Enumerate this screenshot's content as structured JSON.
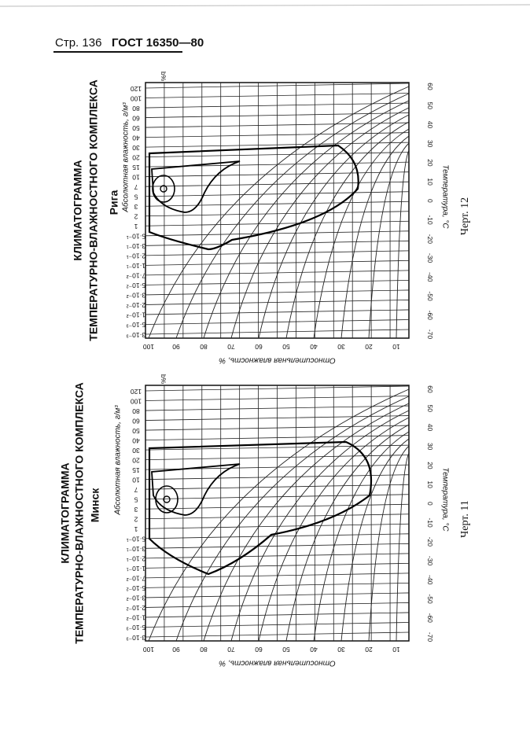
{
  "header": {
    "page": "Стр. 136",
    "standard": "ГОСТ 16350—80"
  },
  "charts": [
    {
      "title": "КЛИМАТОГРАММА",
      "subtitle": "ТЕМПЕРАТУРНО-ВЛАЖНОСТНОГО КОМПЛЕКСА",
      "city": "Рига",
      "abs_label": "Абсолютная влажность, г/м³",
      "abs_ticks": [
        "120",
        "100",
        "80",
        "60",
        "50",
        "40",
        "30",
        "20",
        "15",
        "10",
        "7",
        "5",
        "3",
        "2",
        "1",
        "5·10⁻¹",
        "3·10⁻¹",
        "2·10⁻¹",
        "1·10⁻¹",
        "7·10⁻²",
        "5·10⁻²",
        "3·10⁻²",
        "2·10⁻²",
        "1·10⁻²",
        "5·10⁻³",
        "3·10⁻³"
      ],
      "rel_label": "Относительная влажность, %",
      "rel_ticks": [
        "100",
        "90",
        "80",
        "70",
        "60",
        "50",
        "40",
        "30",
        "20",
        "10"
      ],
      "temp_label": "Температура, °C",
      "temp_ticks": [
        "60",
        "50",
        "40",
        "30",
        "20",
        "10",
        "0",
        "-10",
        "-20",
        "-30",
        "-40",
        "-50",
        "-60",
        "-70"
      ],
      "corner": "b%",
      "caption": "Черт. 12"
    },
    {
      "title": "КЛИМАТОГРАММА",
      "subtitle": "ТЕМПЕРАТУРНО-ВЛАЖНОСТНОГО КОМПЛЕКСА",
      "city": "Минск",
      "abs_label": "Абсолютная влажность, г/м³",
      "abs_ticks": [
        "120",
        "100",
        "80",
        "60",
        "50",
        "40",
        "30",
        "20",
        "15",
        "10",
        "7",
        "5",
        "3",
        "2",
        "1",
        "5·10⁻¹",
        "3·10⁻¹",
        "2·10⁻¹",
        "1·10⁻¹",
        "7·10⁻²",
        "5·10⁻²",
        "3·10⁻²",
        "2·10⁻²",
        "1·10⁻²",
        "5·10⁻³",
        "3·10⁻³"
      ],
      "rel_label": "Относительная влажность, %",
      "rel_ticks": [
        "100",
        "90",
        "80",
        "70",
        "60",
        "50",
        "40",
        "30",
        "20",
        "10"
      ],
      "temp_label": "Температура, °C",
      "temp_ticks": [
        "60",
        "50",
        "40",
        "30",
        "20",
        "10",
        "0",
        "-10",
        "-20",
        "-30",
        "-40",
        "-50",
        "-60",
        "-70"
      ],
      "corner": "b%",
      "caption": "Черт. 11"
    }
  ]
}
